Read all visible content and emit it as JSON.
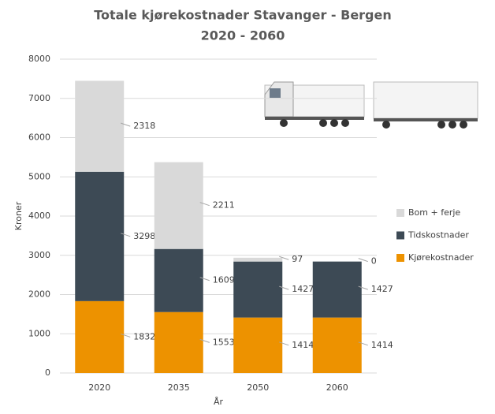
{
  "chart_data": {
    "type": "stacked-bar",
    "title": "Totale kjørekostnader Stavanger - Bergen",
    "subtitle": "2020 - 2060",
    "x_label": "År",
    "y_label": "Kroner",
    "categories": [
      "2020",
      "2035",
      "2050",
      "2060"
    ],
    "series": [
      {
        "name": "Kjørekostnader",
        "color": "#ed9200",
        "values": [
          1832,
          1553,
          1414,
          1414
        ]
      },
      {
        "name": "Tidskostnader",
        "color": "#3d4a55",
        "values": [
          3298,
          1609,
          1427,
          1427
        ]
      },
      {
        "name": "Bom + ferje",
        "color": "#d9d9d9",
        "values": [
          2318,
          2211,
          97,
          0
        ]
      }
    ],
    "ylim": [
      0,
      8000
    ],
    "yticks": [
      0,
      1000,
      2000,
      3000,
      4000,
      5000,
      6000,
      7000,
      8000
    ],
    "grid": true,
    "legend": "right"
  }
}
